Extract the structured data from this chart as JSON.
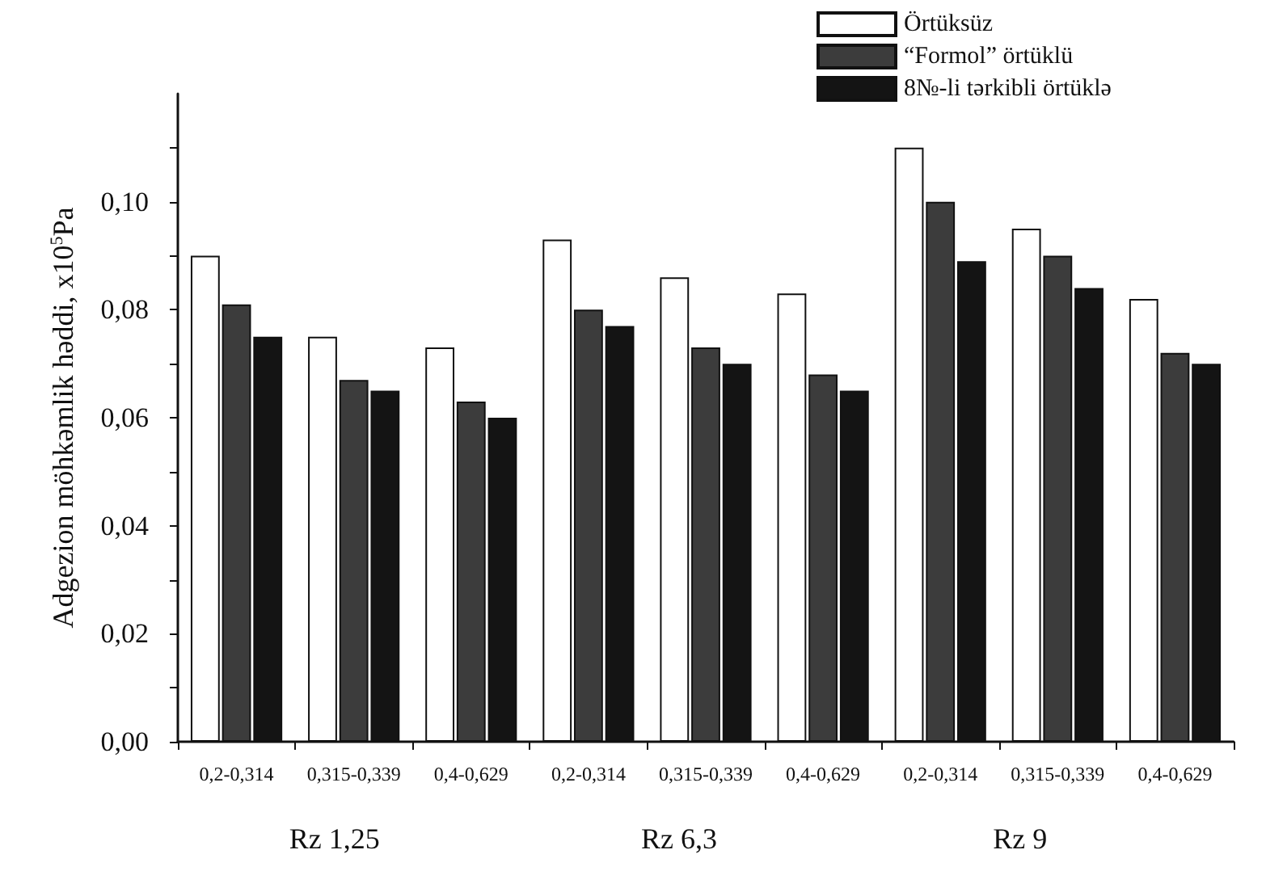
{
  "chart_data": {
    "type": "bar",
    "ylabel": "Adgezion möhkəmlik həddi, x10$^{5}$Pa",
    "categories": [
      "0,2-0,314",
      "0,315-0,339",
      "0,4-0,629",
      "0,2-0,314",
      "0,315-0,339",
      "0,4-0,629",
      "0,2-0,314",
      "0,315-0,339",
      "0,4-0,629"
    ],
    "series": [
      {
        "name": "Örtüksüz",
        "color": "#ffffff",
        "values": [
          0.09,
          0.075,
          0.073,
          0.093,
          0.086,
          0.083,
          0.11,
          0.095,
          0.082
        ]
      },
      {
        "name": "“Formol” örtüklü",
        "color": "#3c3c3c",
        "values": [
          0.081,
          0.067,
          0.063,
          0.08,
          0.073,
          0.068,
          0.1,
          0.09,
          0.072
        ]
      },
      {
        "name": "8№-li tərkibli örtüklə",
        "color": "#141414",
        "values": [
          0.075,
          0.065,
          0.06,
          0.077,
          0.07,
          0.065,
          0.089,
          0.084,
          0.07
        ]
      }
    ],
    "annotations": [
      "Rz 1,25",
      "Rz 6,3",
      "Rz 9"
    ],
    "ylim": [
      0,
      0.12
    ],
    "yticks": [
      {
        "value": 0,
        "label": "0,00"
      },
      {
        "value": 0.01,
        "label": null
      },
      {
        "value": 0.02,
        "label": "0,02"
      },
      {
        "value": 0.03,
        "label": null
      },
      {
        "value": 0.04,
        "label": "0,04"
      },
      {
        "value": 0.05,
        "label": null
      },
      {
        "value": 0.06,
        "label": "0,06"
      },
      {
        "value": 0.07,
        "label": null
      },
      {
        "value": 0.08,
        "label": "0,08"
      },
      {
        "value": 0.09,
        "label": null
      },
      {
        "value": 0.1,
        "label": "0,10"
      },
      {
        "value": 0.11,
        "label": null
      }
    ],
    "grid": false,
    "legend": "top right"
  }
}
